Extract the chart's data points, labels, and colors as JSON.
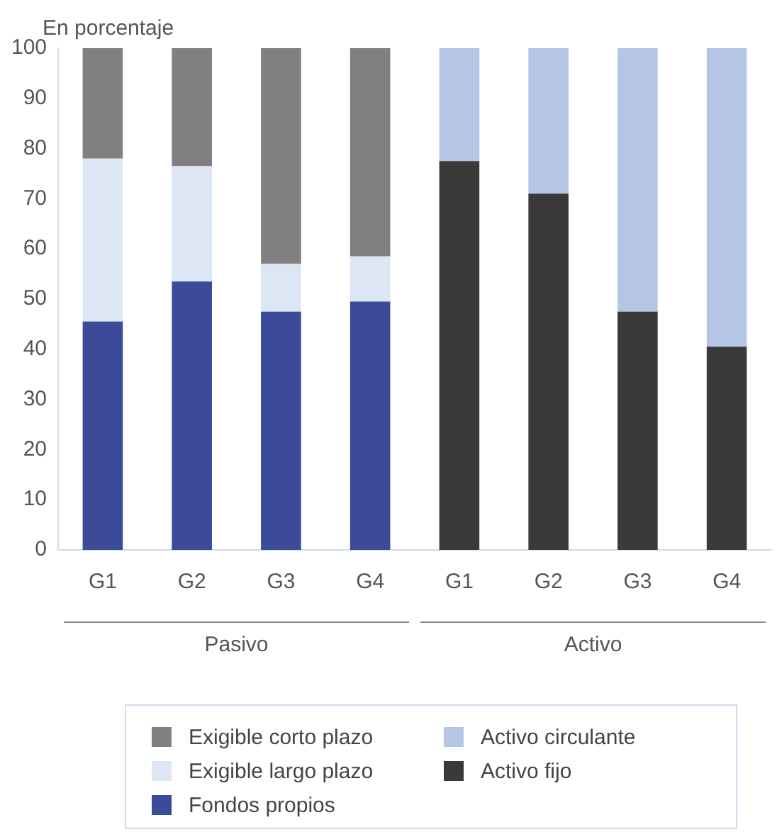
{
  "chart_data": {
    "type": "bar",
    "stacked": true,
    "ylabel": "En porcentaje",
    "categories": [
      "G1",
      "G2",
      "G3",
      "G4",
      "G1",
      "G2",
      "G3",
      "G4"
    ],
    "series": [
      {
        "name": "Fondos propios",
        "color": "#3c4a9a",
        "values": [
          45.5,
          53.5,
          47.5,
          49.5,
          null,
          null,
          null,
          null
        ]
      },
      {
        "name": "Exigible largo plazo",
        "color": "#dce6f4",
        "values": [
          32.5,
          23,
          9.5,
          9,
          null,
          null,
          null,
          null
        ]
      },
      {
        "name": "Exigible corto plazo",
        "color": "#808080",
        "values": [
          22,
          23.5,
          43,
          41.5,
          null,
          null,
          null,
          null
        ]
      },
      {
        "name": "Activo fijo",
        "color": "#3a3a3a",
        "values": [
          null,
          null,
          null,
          null,
          77.5,
          71,
          47.5,
          40.5
        ]
      },
      {
        "name": "Activo circulante",
        "color": "#b4c6e4",
        "values": [
          null,
          null,
          null,
          null,
          22.5,
          29,
          52.5,
          59.5
        ]
      }
    ],
    "ylim": [
      0,
      100
    ],
    "yticks": [
      0,
      10,
      20,
      30,
      40,
      50,
      60,
      70,
      80,
      90,
      100
    ],
    "annotations": [
      "Pasivo",
      "Activo"
    ],
    "grid": false,
    "legend": "bottom"
  }
}
